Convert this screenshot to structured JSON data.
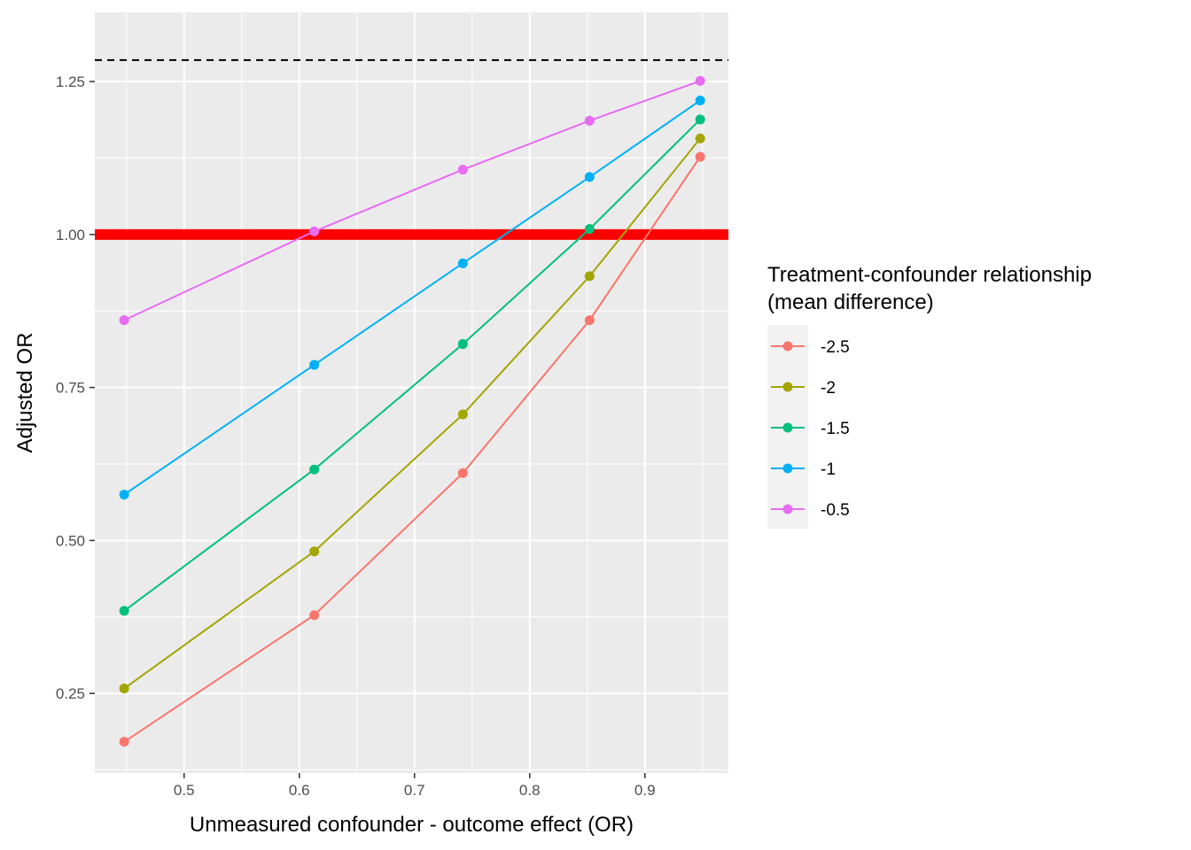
{
  "chart_data": {
    "type": "line",
    "xlabel": "Unmeasured confounder - outcome effect (OR)",
    "ylabel": "Adjusted OR",
    "xlim": [
      0.4225,
      0.9725
    ],
    "ylim": [
      0.12,
      1.363
    ],
    "x_ticks": [
      0.5,
      0.6,
      0.7,
      0.8,
      0.9
    ],
    "x_tick_labels": [
      "0.5",
      "0.6",
      "0.7",
      "0.8",
      "0.9"
    ],
    "y_ticks": [
      0.25,
      0.5,
      0.75,
      1.0,
      1.25
    ],
    "y_tick_labels": [
      "0.25",
      "0.50",
      "0.75",
      "1.00",
      "1.25"
    ],
    "x": [
      0.448,
      0.613,
      0.742,
      0.852,
      0.948
    ],
    "legend_title": [
      "Treatment-confounder relationship",
      "(mean difference)"
    ],
    "legend_position": "right",
    "grid": true,
    "series": [
      {
        "name": "-2.5",
        "color": "#F8766D",
        "values": [
          0.171,
          0.378,
          0.61,
          0.86,
          1.127
        ]
      },
      {
        "name": "-2",
        "color": "#A3A500",
        "values": [
          0.258,
          0.482,
          0.706,
          0.932,
          1.157
        ]
      },
      {
        "name": "-1.5",
        "color": "#00BF7D",
        "values": [
          0.385,
          0.616,
          0.821,
          1.009,
          1.188
        ]
      },
      {
        "name": "-1",
        "color": "#00B0F6",
        "values": [
          0.575,
          0.787,
          0.953,
          1.094,
          1.219
        ]
      },
      {
        "name": "-0.5",
        "color": "#E76BF3",
        "values": [
          0.86,
          1.005,
          1.106,
          1.186,
          1.251
        ]
      }
    ],
    "reference_lines": [
      {
        "y": 1.0,
        "color": "#FF0000",
        "style": "solid"
      },
      {
        "y": 1.285,
        "color": "#000000",
        "style": "dashed"
      }
    ]
  }
}
